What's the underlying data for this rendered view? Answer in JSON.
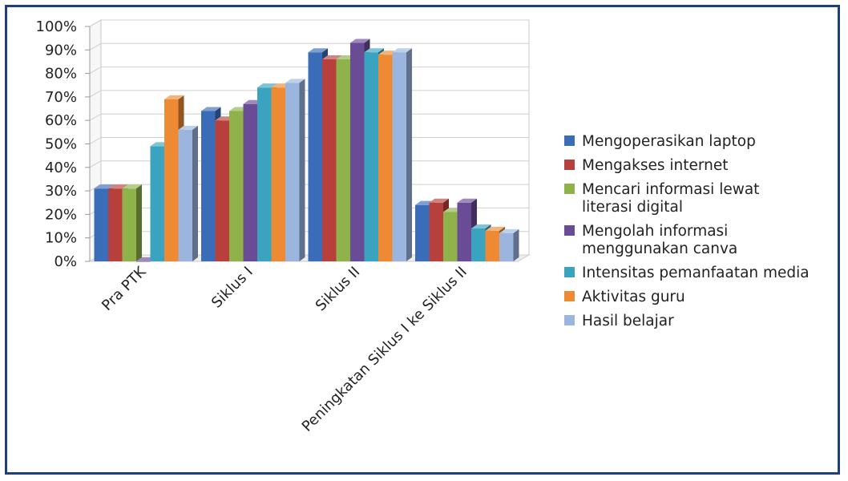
{
  "chart_data": {
    "type": "bar",
    "style": "3d-clustered-column",
    "categories": [
      "Pra PTK",
      "Siklus I",
      "Siklus II",
      "Peningkatan Siklus I ke Siklus II"
    ],
    "ylim": [
      0,
      100
    ],
    "yticks": [
      "0%",
      "10%",
      "20%",
      "30%",
      "40%",
      "50%",
      "60%",
      "70%",
      "80%",
      "90%",
      "100%"
    ],
    "grid": true,
    "legend_position": "right",
    "series": [
      {
        "name": "Mengoperasikan laptop",
        "color": "#3a6cb8",
        "values": [
          31,
          64,
          89,
          24
        ]
      },
      {
        "name": "Mengakses internet",
        "color": "#b8403c",
        "values": [
          31,
          60,
          86,
          25
        ]
      },
      {
        "name": "Mencari informasi lewat literasi digital",
        "name_lines": [
          "Mencari informasi lewat",
          "literasi digital"
        ],
        "color": "#8fb24a",
        "values": [
          31,
          64,
          86,
          21
        ]
      },
      {
        "name": "Mengolah informasi menggunakan canva",
        "name_lines": [
          "Mengolah informasi",
          "menggunakan canva"
        ],
        "color": "#6a4c96",
        "values": [
          0,
          67,
          93,
          25
        ]
      },
      {
        "name": "Intensitas pemanfaatan media",
        "color": "#3aa3c0",
        "values": [
          49,
          74,
          89,
          14
        ]
      },
      {
        "name": "Aktivitas guru",
        "color": "#ee8a33",
        "values": [
          69,
          74,
          88,
          13
        ]
      },
      {
        "name": "Hasil belajar",
        "color": "#9bb5df",
        "values": [
          56,
          76,
          89,
          12
        ]
      }
    ]
  }
}
